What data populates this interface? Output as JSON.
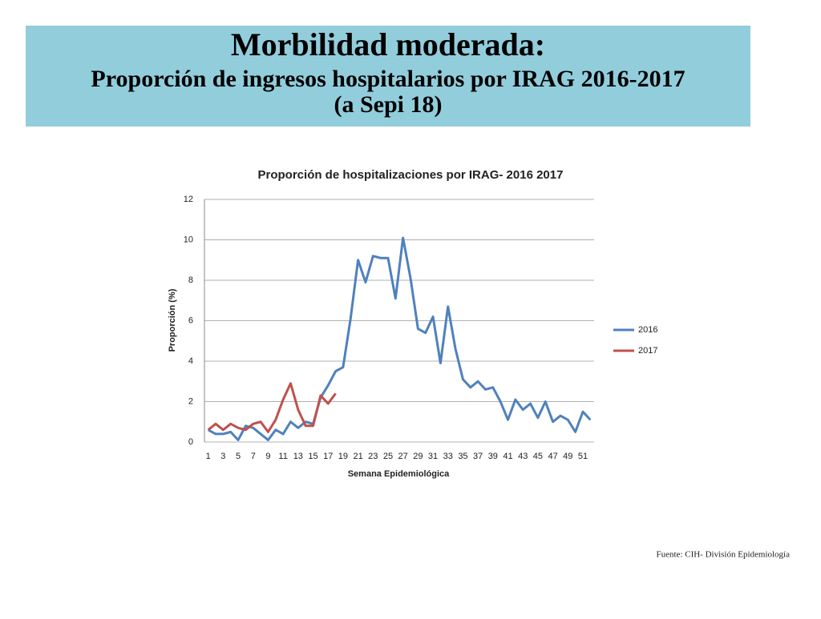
{
  "header": {
    "title": "Morbilidad moderada:",
    "subtitle": "Proporción de ingresos hospitalarios por IRAG 2016-2017",
    "subtitle2": "(a Sepi 18)"
  },
  "source": "Fuente: CIH- División Epidemiología",
  "chart_data": {
    "type": "line",
    "title": "Proporción de hospitalizaciones por IRAG- 2016 2017",
    "x_label": "Semana Epidemiológica",
    "y_label": "Proporción (%)",
    "categories": [
      1,
      null,
      3,
      null,
      5,
      null,
      7,
      null,
      9,
      null,
      11,
      null,
      13,
      null,
      15,
      null,
      17,
      null,
      19,
      null,
      21,
      null,
      23,
      null,
      25,
      null,
      27,
      null,
      29,
      null,
      31,
      null,
      33,
      null,
      35,
      null,
      37,
      null,
      39,
      null,
      41,
      null,
      43,
      null,
      45,
      null,
      47,
      null,
      49,
      null,
      51,
      null
    ],
    "series": [
      {
        "name": "2016",
        "color": "#4f81bd",
        "values": [
          0.6,
          0.4,
          0.4,
          0.5,
          0.1,
          0.8,
          0.7,
          0.4,
          0.1,
          0.6,
          0.4,
          1.0,
          0.7,
          1.0,
          0.9,
          2.2,
          2.8,
          3.5,
          3.7,
          6.1,
          9.0,
          7.9,
          9.2,
          9.1,
          9.1,
          7.1,
          10.1,
          8.1,
          5.6,
          5.4,
          6.2,
          3.9,
          6.7,
          4.6,
          3.1,
          2.7,
          3.0,
          2.6,
          2.7,
          2.0,
          1.1,
          2.1,
          1.6,
          1.9,
          1.2,
          2.0,
          1.0,
          1.3,
          1.1,
          0.5,
          1.5,
          1.1
        ]
      },
      {
        "name": "2017",
        "color": "#c0504d",
        "values": [
          0.6,
          0.9,
          0.6,
          0.9,
          0.7,
          0.6,
          0.9,
          1.0,
          0.5,
          1.1,
          2.1,
          2.9,
          1.6,
          0.8,
          0.8,
          2.3,
          1.9,
          2.4,
          null,
          null,
          null,
          null,
          null,
          null,
          null,
          null,
          null,
          null,
          null,
          null,
          null,
          null,
          null,
          null,
          null,
          null,
          null,
          null,
          null,
          null,
          null,
          null,
          null,
          null,
          null,
          null,
          null,
          null,
          null,
          null,
          null,
          null
        ]
      }
    ],
    "ylim": [
      0,
      12
    ],
    "yticks": [
      0,
      2,
      4,
      6,
      8,
      10,
      12
    ],
    "grid": true,
    "legend": "right"
  }
}
